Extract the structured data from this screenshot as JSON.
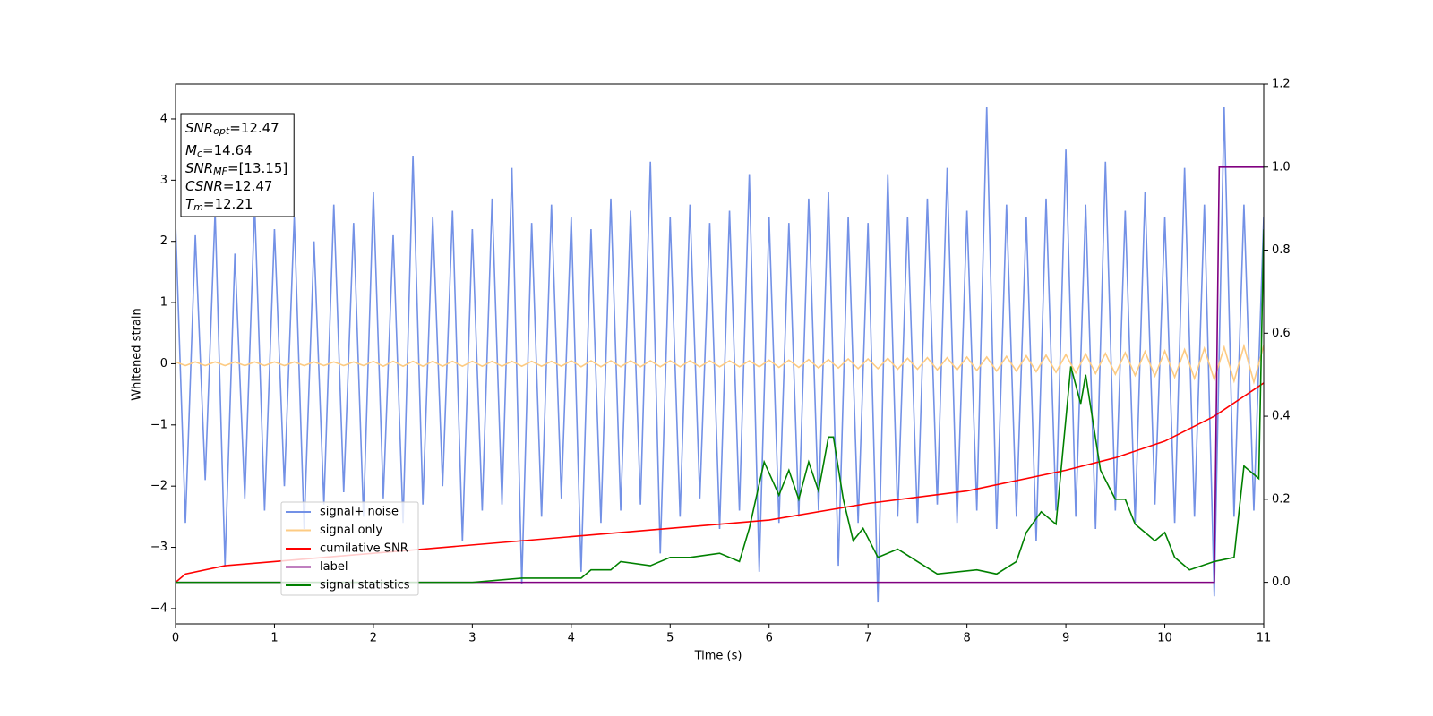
{
  "chart_data": {
    "type": "line",
    "xlabel": "Time (s)",
    "ylabel": "Whitened strain",
    "xlim": [
      0,
      11
    ],
    "ylim": [
      -4.25,
      4.57
    ],
    "y2lim": [
      -0.1,
      1.2
    ],
    "xticks": [
      0,
      1,
      2,
      3,
      4,
      5,
      6,
      7,
      8,
      9,
      10,
      11
    ],
    "yticks": [
      {
        "value": -4,
        "label": "−4"
      },
      {
        "value": -3,
        "label": "−3"
      },
      {
        "value": -2,
        "label": "−2"
      },
      {
        "value": -1,
        "label": "−1"
      },
      0,
      1,
      2,
      3,
      4
    ],
    "y2ticks": [
      {
        "value": 0,
        "label": "0.0"
      },
      0.2,
      0.4,
      0.6,
      0.8,
      {
        "value": 1,
        "label": "1.0"
      },
      1.2
    ],
    "legend": "lower left",
    "x": [
      0,
      0.1,
      0.2,
      0.3,
      0.4,
      0.5,
      0.6,
      0.7,
      0.8,
      0.9,
      1,
      1.1,
      1.2,
      1.3,
      1.4,
      1.5,
      1.6,
      1.7,
      1.8,
      1.9,
      2,
      2.1,
      2.2,
      2.3,
      2.4,
      2.5,
      2.6,
      2.7,
      2.8,
      2.9,
      3,
      3.1,
      3.2,
      3.3,
      3.4,
      3.5,
      3.6,
      3.7,
      3.8,
      3.9,
      4,
      4.1,
      4.2,
      4.3,
      4.4,
      4.5,
      4.6,
      4.7,
      4.8,
      4.9,
      5,
      5.1,
      5.2,
      5.3,
      5.4,
      5.5,
      5.6,
      5.7,
      5.8,
      5.9,
      6,
      6.1,
      6.2,
      6.3,
      6.4,
      6.5,
      6.6,
      6.7,
      6.8,
      6.9,
      7,
      7.1,
      7.2,
      7.3,
      7.4,
      7.5,
      7.6,
      7.7,
      7.8,
      7.9,
      8,
      8.1,
      8.2,
      8.3,
      8.4,
      8.5,
      8.6,
      8.7,
      8.8,
      8.9,
      9,
      9.1,
      9.2,
      9.3,
      9.4,
      9.5,
      9.6,
      9.7,
      9.8,
      9.9,
      10,
      10.1,
      10.2,
      10.3,
      10.4,
      10.5,
      10.6,
      10.7,
      10.8,
      10.9,
      11
    ],
    "series": [
      {
        "name": "signal+ noise",
        "color": "#7391e6",
        "values": [
          2.3,
          -2.6,
          2.1,
          -1.9,
          2.5,
          -3.3,
          1.8,
          -2.2,
          2.6,
          -2.4,
          2.2,
          -2.0,
          2.4,
          -2.7,
          2.0,
          -2.3,
          2.6,
          -2.1,
          2.3,
          -2.5,
          2.8,
          -2.2,
          2.1,
          -2.6,
          3.4,
          -2.3,
          2.4,
          -2.0,
          2.5,
          -2.9,
          2.2,
          -2.4,
          2.7,
          -2.3,
          3.2,
          -3.6,
          2.3,
          -2.5,
          2.6,
          -2.2,
          2.4,
          -3.4,
          2.2,
          -2.6,
          2.7,
          -2.4,
          2.5,
          -2.3,
          3.3,
          -3.1,
          2.4,
          -2.5,
          2.6,
          -2.2,
          2.3,
          -2.7,
          2.5,
          -2.4,
          3.1,
          -3.4,
          2.4,
          -2.6,
          2.3,
          -2.5,
          2.7,
          -2.4,
          2.8,
          -3.3,
          2.4,
          -2.6,
          2.3,
          -3.9,
          3.1,
          -2.5,
          2.4,
          -2.6,
          2.7,
          -2.3,
          3.2,
          -2.6,
          2.5,
          -2.4,
          4.2,
          -2.7,
          2.6,
          -2.5,
          2.4,
          -2.9,
          2.7,
          -2.4,
          3.5,
          -2.5,
          2.6,
          -2.7,
          3.3,
          -2.4,
          2.5,
          -2.6,
          2.8,
          -2.3,
          2.4,
          -2.6,
          3.2,
          -2.5,
          2.6,
          -3.8,
          4.2,
          -2.5,
          2.6,
          -2.4,
          2.4
        ]
      },
      {
        "name": "signal only",
        "color": "#fdcb83",
        "values": [
          0.03,
          -0.03,
          0.03,
          -0.03,
          0.03,
          -0.03,
          0.03,
          -0.03,
          0.03,
          -0.03,
          0.03,
          -0.03,
          0.03,
          -0.03,
          0.03,
          -0.03,
          0.03,
          -0.03,
          0.03,
          -0.03,
          0.04,
          -0.04,
          0.04,
          -0.04,
          0.04,
          -0.04,
          0.04,
          -0.04,
          0.04,
          -0.04,
          0.04,
          -0.04,
          0.04,
          -0.04,
          0.04,
          -0.04,
          0.04,
          -0.04,
          0.04,
          -0.04,
          0.05,
          -0.05,
          0.05,
          -0.05,
          0.05,
          -0.05,
          0.05,
          -0.05,
          0.05,
          -0.05,
          0.05,
          -0.05,
          0.05,
          -0.05,
          0.05,
          -0.05,
          0.05,
          -0.05,
          0.05,
          -0.05,
          0.06,
          -0.06,
          0.06,
          -0.06,
          0.07,
          -0.07,
          0.07,
          -0.07,
          0.08,
          -0.08,
          0.08,
          -0.08,
          0.09,
          -0.09,
          0.09,
          -0.09,
          0.1,
          -0.1,
          0.1,
          -0.1,
          0.11,
          -0.11,
          0.11,
          -0.12,
          0.12,
          -0.12,
          0.13,
          -0.13,
          0.14,
          -0.14,
          0.15,
          -0.15,
          0.16,
          -0.16,
          0.17,
          -0.17,
          0.18,
          -0.19,
          0.2,
          -0.2,
          0.21,
          -0.22,
          0.23,
          -0.24,
          0.25,
          -0.26,
          0.27,
          -0.28,
          0.29,
          -0.3,
          0.3
        ]
      },
      {
        "name": "cumilative SNR",
        "color": "#ff0000",
        "axis": "y2",
        "x": [
          0,
          0.1,
          0.5,
          1,
          2,
          3,
          4,
          5,
          6,
          7,
          8,
          9,
          9.5,
          10,
          10.5,
          11
        ],
        "values": [
          0,
          0.02,
          0.04,
          0.05,
          0.07,
          0.09,
          0.11,
          0.13,
          0.15,
          0.19,
          0.22,
          0.27,
          0.3,
          0.34,
          0.4,
          0.48
        ]
      },
      {
        "name": "label",
        "color": "#800080",
        "axis": "y2",
        "x": [
          0,
          10.5,
          10.55,
          11
        ],
        "values": [
          0,
          0,
          1,
          1
        ]
      },
      {
        "name": "signal statistics",
        "color": "#008000",
        "axis": "y2",
        "x": [
          0,
          3,
          3.5,
          4,
          4.1,
          4.2,
          4.4,
          4.5,
          4.8,
          5,
          5.2,
          5.5,
          5.7,
          5.8,
          5.95,
          6.1,
          6.2,
          6.3,
          6.4,
          6.5,
          6.6,
          6.65,
          6.75,
          6.85,
          6.95,
          7.1,
          7.3,
          7.5,
          7.7,
          8.1,
          8.3,
          8.5,
          8.6,
          8.75,
          8.9,
          9.05,
          9.15,
          9.2,
          9.35,
          9.5,
          9.6,
          9.7,
          9.9,
          10,
          10.1,
          10.25,
          10.5,
          10.7,
          10.8,
          10.95,
          11
        ],
        "values": [
          0,
          0,
          0.01,
          0.01,
          0.01,
          0.03,
          0.03,
          0.05,
          0.04,
          0.06,
          0.06,
          0.07,
          0.05,
          0.13,
          0.29,
          0.21,
          0.27,
          0.2,
          0.29,
          0.22,
          0.35,
          0.35,
          0.2,
          0.1,
          0.13,
          0.06,
          0.08,
          0.05,
          0.02,
          0.03,
          0.02,
          0.05,
          0.12,
          0.17,
          0.14,
          0.52,
          0.43,
          0.5,
          0.27,
          0.2,
          0.2,
          0.14,
          0.1,
          0.12,
          0.06,
          0.03,
          0.05,
          0.06,
          0.28,
          0.25,
          0.85
        ]
      }
    ],
    "annotations": [
      {
        "symbol": "SNR",
        "subscript": "opt",
        "text": "=12.47"
      },
      {
        "symbol": "M",
        "subscript": "c",
        "text": "=14.64"
      },
      {
        "symbol": "SNR",
        "subscript": "MF",
        "text": "=[13.15]"
      },
      {
        "symbol": "CSNR",
        "text": "=12.47"
      },
      {
        "symbol": "T",
        "subscript": "m",
        "text": "=12.21"
      }
    ]
  }
}
